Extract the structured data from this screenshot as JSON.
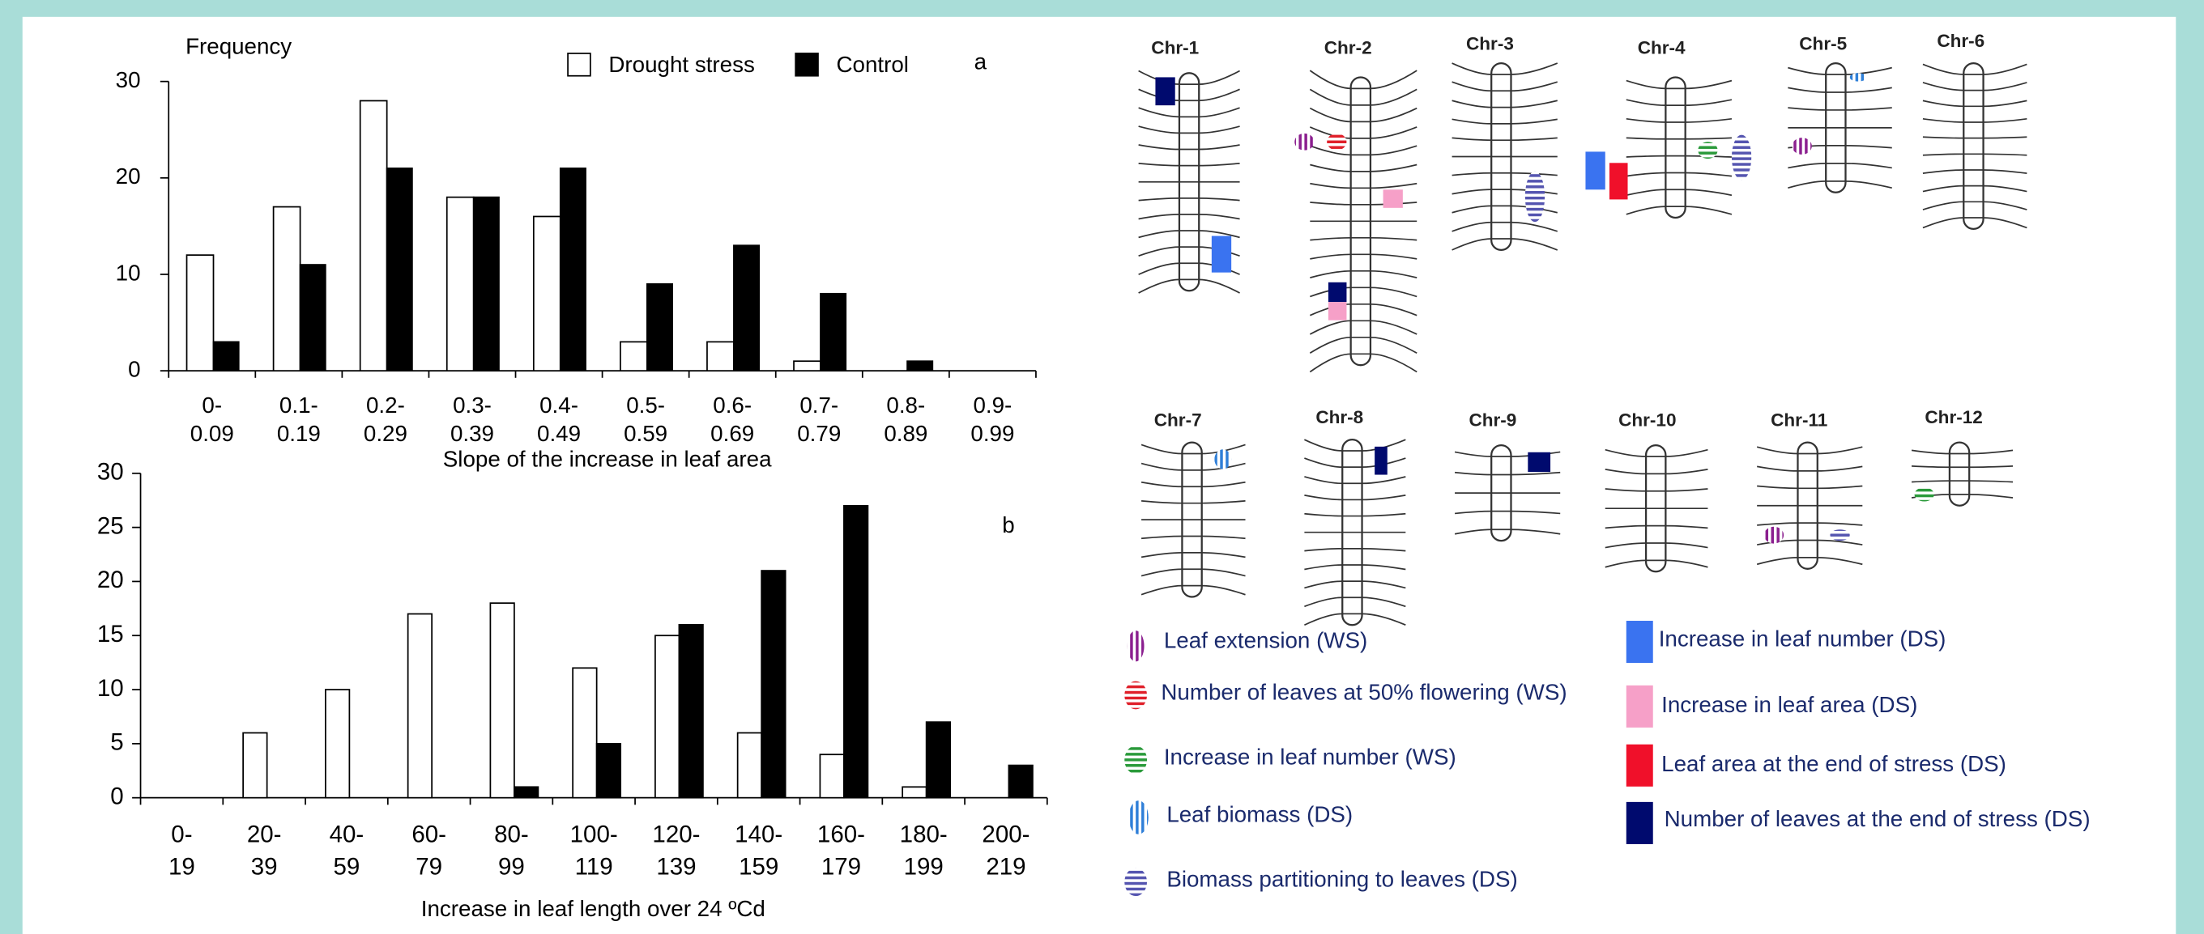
{
  "chart_data": [
    {
      "type": "bar",
      "y_label": "Frequency",
      "x_label": "Slope of the increase in leaf area",
      "annotation": "a",
      "categories": [
        "0-0.09",
        "0.1-0.19",
        "0.2-0.29",
        "0.3-0.39",
        "0.4-0.49",
        "0.5-0.59",
        "0.6-0.69",
        "0.7-0.79",
        "0.8-0.89",
        "0.9-0.99"
      ],
      "series": [
        {
          "name": "Drought stress",
          "color": "#ffffff",
          "values": [
            12,
            17,
            28,
            18,
            16,
            3,
            3,
            1,
            0,
            0
          ]
        },
        {
          "name": "Control",
          "color": "#000000",
          "values": [
            3,
            11,
            21,
            18,
            21,
            9,
            13,
            8,
            1,
            0
          ]
        }
      ],
      "ylim": [
        0,
        30
      ],
      "yticks": [
        0,
        10,
        20,
        30
      ],
      "legend": "top-right"
    },
    {
      "type": "bar",
      "x_label": "Increase in leaf length over 24 ºCd",
      "annotation": "b",
      "categories": [
        "0-19",
        "20-39",
        "40-59",
        "60-79",
        "80-99",
        "100-119",
        "120-139",
        "140-159",
        "160-179",
        "180-199",
        "200-219"
      ],
      "series": [
        {
          "color": "#ffffff",
          "values": [
            0,
            6,
            10,
            17,
            18,
            12,
            15,
            6,
            4,
            1,
            0
          ]
        },
        {
          "color": "#000000",
          "values": [
            0,
            0,
            0,
            0,
            1,
            5,
            16,
            21,
            27,
            7,
            3
          ]
        }
      ],
      "ylim": [
        0,
        30
      ],
      "yticks": [
        0,
        5,
        10,
        15,
        20,
        25,
        30
      ]
    }
  ],
  "diagram": {
    "chromosomes": [
      {
        "label": "Chr-1"
      },
      {
        "label": "Chr-2"
      },
      {
        "label": "Chr-3"
      },
      {
        "label": "Chr-4"
      },
      {
        "label": "Chr-5"
      },
      {
        "label": "Chr-6"
      },
      {
        "label": "Chr-7"
      },
      {
        "label": "Chr-8"
      },
      {
        "label": "Chr-9"
      },
      {
        "label": "Chr-10"
      },
      {
        "label": "Chr-11"
      },
      {
        "label": "Chr-12"
      }
    ],
    "legend": [
      {
        "label": "Leaf extension (WS)"
      },
      {
        "label": "Number of leaves at 50% flowering (WS)"
      },
      {
        "label": "Increase in leaf number (WS)"
      },
      {
        "label": "Leaf biomass (DS)"
      },
      {
        "label": "Biomass partitioning to leaves (DS)"
      },
      {
        "label": "Increase in leaf number (DS)"
      },
      {
        "label": "Increase in leaf area (DS)"
      },
      {
        "label": "Leaf area at the end of stress (DS)"
      },
      {
        "label": "Number of leaves at the end of stress (DS)"
      }
    ]
  }
}
